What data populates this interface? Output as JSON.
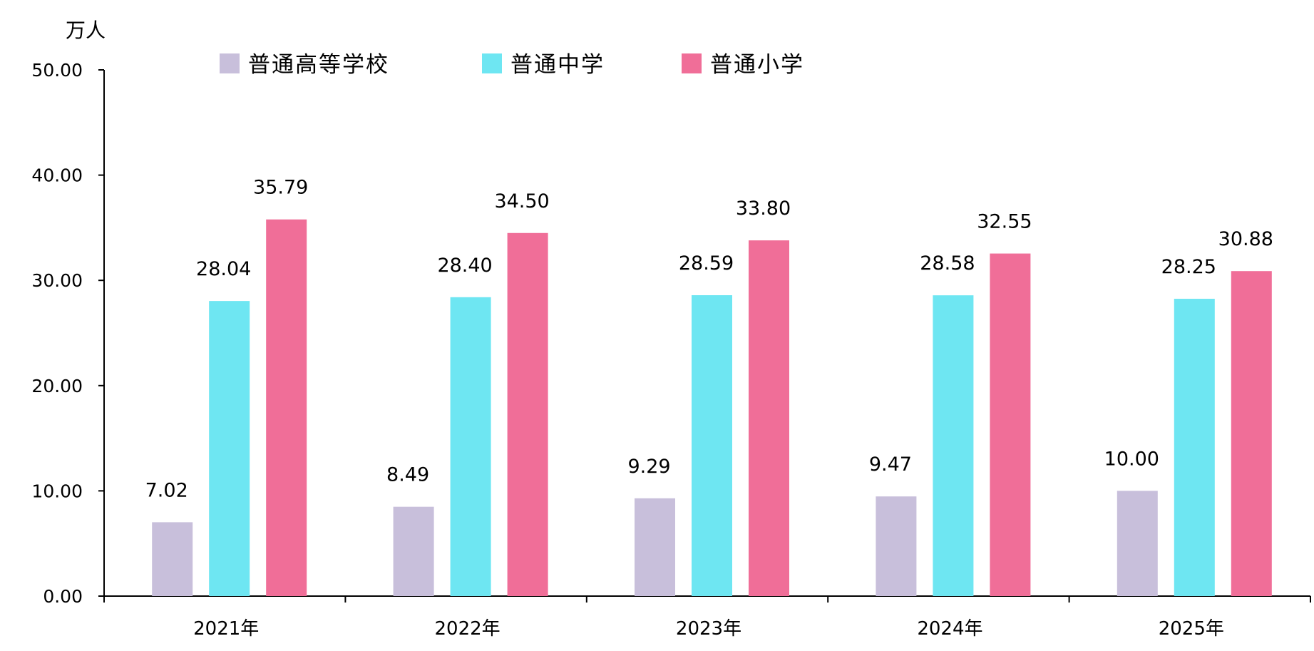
{
  "chart_data": {
    "type": "bar",
    "title": "",
    "xlabel": "",
    "ylabel": "万人",
    "ylim": [
      0,
      50
    ],
    "yticks": [
      "0.00",
      "10.00",
      "20.00",
      "30.00",
      "40.00",
      "50.00"
    ],
    "categories": [
      "2021年",
      "2022年",
      "2023年",
      "2024年",
      "2025年"
    ],
    "grid": false,
    "legend_position": "top",
    "series": [
      {
        "name": "普通高等学校",
        "color": "#c8bfdb",
        "values": [
          7.02,
          8.49,
          9.29,
          9.47,
          10.0
        ],
        "labels": [
          "7.02",
          "8.49",
          "9.29",
          "9.47",
          "10.00"
        ]
      },
      {
        "name": "普通中学",
        "color": "#6ee6f2",
        "values": [
          28.04,
          28.4,
          28.59,
          28.58,
          28.25
        ],
        "labels": [
          "28.04",
          "28.40",
          "28.59",
          "28.58",
          "28.25"
        ]
      },
      {
        "name": "普通小学",
        "color": "#f06e98",
        "values": [
          35.79,
          34.5,
          33.8,
          32.55,
          30.88
        ],
        "labels": [
          "35.79",
          "34.50",
          "33.80",
          "32.55",
          "30.88"
        ]
      }
    ]
  }
}
